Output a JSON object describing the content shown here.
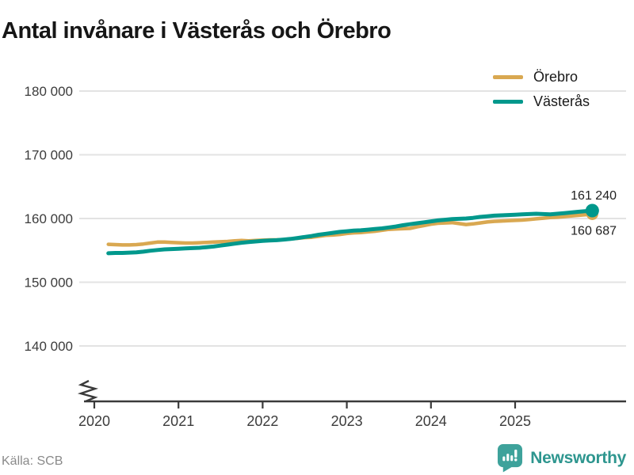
{
  "header": {
    "title": "Antal invånare i Västerås och Örebro"
  },
  "source": {
    "label": "Källa: SCB"
  },
  "branding": {
    "name": "Newsworthy",
    "logo_icon": "chart-speech-bubble-icon",
    "color": "#3ea29b",
    "text_color": "#2e968f"
  },
  "chart_data": {
    "type": "line",
    "title": "Antal invånare i Västerås och Örebro",
    "xlabel": "",
    "ylabel": "",
    "frequency": "monthly",
    "x_start": "2020-02",
    "x_end": "2025-11",
    "x_ticks": [
      "2020",
      "2021",
      "2022",
      "2023",
      "2024",
      "2025"
    ],
    "x_tick_years": [
      2020,
      2021,
      2022,
      2023,
      2024,
      2025
    ],
    "y_ticks": [
      {
        "value": 180000,
        "label": "180 000"
      },
      {
        "value": 170000,
        "label": "170 000"
      },
      {
        "value": 160000,
        "label": "160 000"
      },
      {
        "value": 150000,
        "label": "150 000"
      },
      {
        "value": 140000,
        "label": "140 000"
      }
    ],
    "ylim": [
      139000,
      182000
    ],
    "axis_break": true,
    "grid": "horizontal",
    "gridline_color": "#e3e3e3",
    "axis_color": "#3a3a3a",
    "legend_position": "top-right",
    "series": [
      {
        "name": "Örebro",
        "color": "#d9a851",
        "end_label": "160 687",
        "end_value": 160687,
        "values": [
          155950,
          155900,
          155850,
          155850,
          155900,
          156000,
          156150,
          156300,
          156300,
          156250,
          156200,
          156150,
          156150,
          156200,
          156250,
          156300,
          156350,
          156400,
          156500,
          156550,
          156500,
          156550,
          156600,
          156650,
          156650,
          156700,
          156800,
          156900,
          157000,
          157050,
          157200,
          157350,
          157400,
          157500,
          157650,
          157750,
          157800,
          157900,
          158000,
          158150,
          158300,
          158350,
          158400,
          158450,
          158700,
          158900,
          159100,
          159250,
          159300,
          159350,
          159200,
          159050,
          159150,
          159300,
          159450,
          159550,
          159600,
          159650,
          159700,
          159750,
          159850,
          159950,
          160050,
          160150,
          160200,
          160300,
          160400,
          160500,
          160600,
          160687
        ]
      },
      {
        "name": "Västerås",
        "color": "#00988c",
        "end_label": "161 240",
        "end_value": 161240,
        "values": [
          154550,
          154600,
          154600,
          154650,
          154700,
          154800,
          154950,
          155050,
          155150,
          155200,
          155250,
          155300,
          155350,
          155400,
          155500,
          155600,
          155750,
          155900,
          156050,
          156200,
          156300,
          156400,
          156500,
          156550,
          156600,
          156700,
          156800,
          156950,
          157100,
          157250,
          157450,
          157600,
          157750,
          157900,
          158000,
          158100,
          158150,
          158250,
          158350,
          158450,
          158600,
          158750,
          158950,
          159100,
          159250,
          159400,
          159550,
          159700,
          159800,
          159900,
          159950,
          160000,
          160100,
          160250,
          160350,
          160450,
          160500,
          160550,
          160600,
          160650,
          160700,
          160750,
          160700,
          160650,
          160750,
          160850,
          160950,
          161050,
          161150,
          161240
        ]
      }
    ]
  }
}
